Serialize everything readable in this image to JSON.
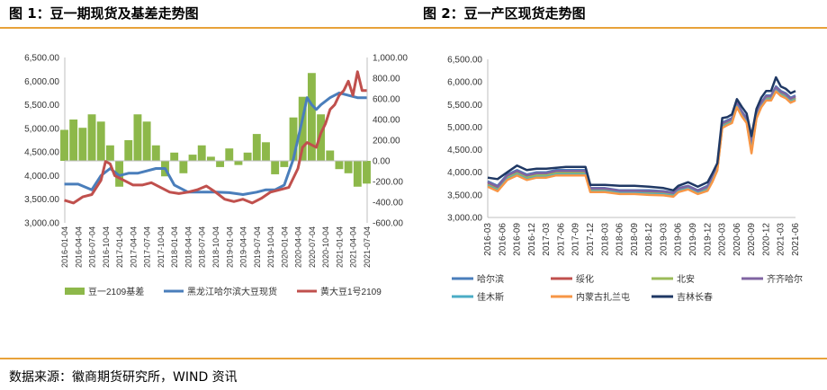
{
  "figure1": {
    "title": "图 1：豆一期现货及基差走势图"
  },
  "figure2": {
    "title": "图 2：豆一产区现货走势图"
  },
  "source": "数据来源：徽商期货研究所，WIND 资讯",
  "chart_data": [
    {
      "type": "bar+line",
      "title": "",
      "xlabel": "",
      "ylabel": "",
      "xlim": [
        "2016-01-04",
        "2021-07-04"
      ],
      "ylim_left": [
        3000,
        6500
      ],
      "ylim_right": [
        -600,
        1000
      ],
      "left_ticks": [
        "3,000.00",
        "3,500.00",
        "4,000.00",
        "4,500.00",
        "5,000.00",
        "5,500.00",
        "6,000.00",
        "6,500.00"
      ],
      "right_ticks": [
        "-600.00",
        "-400.00",
        "-200.00",
        "0.00",
        "200.00",
        "400.00",
        "600.00",
        "800.00",
        "1,000.00"
      ],
      "x_ticks": [
        "2016-01-04",
        "2016-04-04",
        "2016-07-04",
        "2016-10-04",
        "2017-01-04",
        "2017-04-04",
        "2017-07-04",
        "2017-10-04",
        "2018-01-04",
        "2018-04-04",
        "2018-07-04",
        "2018-10-04",
        "2019-01-04",
        "2019-04-04",
        "2019-07-04",
        "2019-10-04",
        "2020-01-04",
        "2020-04-04",
        "2020-07-04",
        "2020-10-04",
        "2021-01-04",
        "2021-04-04",
        "2021-07-04"
      ],
      "legend_placement": "bottom",
      "series": [
        {
          "name": "豆一2109基差",
          "kind": "bar",
          "axis": "right",
          "color": "#8db84a",
          "x": [
            "2016-01",
            "2016-03",
            "2016-05",
            "2016-07",
            "2016-09",
            "2016-11",
            "2017-01",
            "2017-03",
            "2017-05",
            "2017-07",
            "2017-09",
            "2017-11",
            "2018-01",
            "2018-03",
            "2018-05",
            "2018-07",
            "2018-09",
            "2018-11",
            "2019-01",
            "2019-03",
            "2019-05",
            "2019-07",
            "2019-09",
            "2019-11",
            "2020-01",
            "2020-03",
            "2020-05",
            "2020-07",
            "2020-09",
            "2020-11",
            "2021-01",
            "2021-03",
            "2021-05",
            "2021-07"
          ],
          "values": [
            300,
            400,
            320,
            450,
            380,
            150,
            -250,
            200,
            450,
            380,
            150,
            -150,
            80,
            -120,
            60,
            150,
            40,
            -60,
            120,
            -40,
            80,
            260,
            180,
            -130,
            -60,
            420,
            620,
            850,
            450,
            100,
            -80,
            -120,
            -250,
            -220
          ]
        },
        {
          "name": "黑龙江哈尔滨大豆现货",
          "kind": "line",
          "axis": "left",
          "color": "#4a7ebb",
          "x": [
            "2016-01",
            "2016-04",
            "2016-07",
            "2016-09",
            "2016-11",
            "2017-01",
            "2017-03",
            "2017-05",
            "2017-07",
            "2017-09",
            "2017-11",
            "2018-01",
            "2018-04",
            "2018-07",
            "2018-10",
            "2019-01",
            "2019-04",
            "2019-07",
            "2019-09",
            "2019-11",
            "2020-01",
            "2020-03",
            "2020-05",
            "2020-06",
            "2020-07",
            "2020-08",
            "2020-09",
            "2020-11",
            "2021-01",
            "2021-03",
            "2021-05",
            "2021-07"
          ],
          "values": [
            3820,
            3820,
            3700,
            4000,
            4150,
            4000,
            4050,
            4050,
            4100,
            4150,
            4150,
            3800,
            3650,
            3650,
            3650,
            3640,
            3600,
            3650,
            3700,
            3700,
            3800,
            4350,
            5200,
            5650,
            5500,
            5400,
            5500,
            5650,
            5750,
            5700,
            5650,
            5650
          ]
        },
        {
          "name": "黄大豆1号2109",
          "kind": "line",
          "axis": "left",
          "color": "#c0504d",
          "x": [
            "2016-01",
            "2016-03",
            "2016-05",
            "2016-07",
            "2016-09",
            "2016-10",
            "2016-11",
            "2016-12",
            "2017-02",
            "2017-04",
            "2017-06",
            "2017-08",
            "2017-10",
            "2017-12",
            "2018-02",
            "2018-04",
            "2018-06",
            "2018-08",
            "2018-10",
            "2018-12",
            "2019-02",
            "2019-04",
            "2019-06",
            "2019-08",
            "2019-10",
            "2019-12",
            "2020-02",
            "2020-04",
            "2020-05",
            "2020-06",
            "2020-07",
            "2020-08",
            "2020-09",
            "2020-10",
            "2020-11",
            "2020-12",
            "2021-01",
            "2021-02",
            "2021-03",
            "2021-04",
            "2021-05",
            "2021-06",
            "2021-07"
          ],
          "values": [
            3480,
            3420,
            3550,
            3600,
            3900,
            4300,
            4250,
            4000,
            3900,
            3800,
            3800,
            3850,
            3750,
            3650,
            3620,
            3650,
            3700,
            3780,
            3650,
            3500,
            3450,
            3500,
            3420,
            3520,
            3650,
            3700,
            3750,
            4150,
            4600,
            4700,
            4650,
            4600,
            4900,
            5100,
            5400,
            5500,
            5700,
            5800,
            6000,
            5700,
            6200,
            5800,
            5800
          ]
        }
      ]
    },
    {
      "type": "line",
      "title": "",
      "xlabel": "",
      "ylabel": "",
      "xlim": [
        "2016-03",
        "2021-06"
      ],
      "ylim": [
        3000,
        6500
      ],
      "y_ticks": [
        "3,000.00",
        "3,500.00",
        "4,000.00",
        "4,500.00",
        "5,000.00",
        "5,500.00",
        "6,000.00",
        "6,500.00"
      ],
      "x_ticks": [
        "2016-03",
        "2016-06",
        "2016-09",
        "2016-12",
        "2017-03",
        "2017-06",
        "2017-09",
        "2017-12",
        "2018-03",
        "2018-06",
        "2018-09",
        "2018-12",
        "2019-03",
        "2019-06",
        "2019-09",
        "2019-12",
        "2020-03",
        "2020-06",
        "2020-09",
        "2020-12",
        "2021-03",
        "2021-06"
      ],
      "legend_placement": "bottom",
      "x": [
        "2016-03",
        "2016-05",
        "2016-07",
        "2016-09",
        "2016-11",
        "2017-01",
        "2017-03",
        "2017-05",
        "2017-07",
        "2017-09",
        "2017-11",
        "2017-12",
        "2018-03",
        "2018-06",
        "2018-09",
        "2018-12",
        "2019-03",
        "2019-05",
        "2019-06",
        "2019-08",
        "2019-10",
        "2019-12",
        "2020-01",
        "2020-02",
        "2020-03",
        "2020-04",
        "2020-05",
        "2020-06",
        "2020-07",
        "2020-08",
        "2020-09",
        "2020-10",
        "2020-11",
        "2020-12",
        "2021-01",
        "2021-02",
        "2021-03",
        "2021-04",
        "2021-05",
        "2021-06"
      ],
      "series": [
        {
          "name": "哈尔滨",
          "color": "#4a7ebb",
          "values": [
            3800,
            3700,
            3950,
            4050,
            3950,
            4000,
            4000,
            4050,
            4050,
            4050,
            4050,
            3650,
            3650,
            3600,
            3600,
            3600,
            3580,
            3550,
            3650,
            3700,
            3600,
            3700,
            3900,
            4150,
            5100,
            5150,
            5200,
            5550,
            5350,
            5200,
            4700,
            5300,
            5550,
            5700,
            5700,
            5900,
            5800,
            5750,
            5650,
            5700
          ]
        },
        {
          "name": "绥化",
          "color": "#c0504d",
          "values": [
            3750,
            3650,
            3900,
            4000,
            3900,
            3950,
            3950,
            4000,
            4000,
            4000,
            4000,
            3620,
            3620,
            3580,
            3580,
            3560,
            3550,
            3520,
            3620,
            3680,
            3580,
            3650,
            3850,
            4100,
            5050,
            5100,
            5150,
            5500,
            5300,
            5150,
            4500,
            5250,
            5500,
            5650,
            5650,
            5850,
            5750,
            5700,
            5600,
            5650
          ]
        },
        {
          "name": "北安",
          "color": "#9bbb59",
          "values": [
            3720,
            3620,
            3880,
            3980,
            3880,
            3930,
            3930,
            3980,
            3980,
            3980,
            3980,
            3600,
            3600,
            3560,
            3560,
            3540,
            3530,
            3500,
            3600,
            3660,
            3560,
            3630,
            3830,
            4080,
            5030,
            5080,
            5130,
            5480,
            5280,
            5130,
            4480,
            5230,
            5480,
            5630,
            5630,
            5830,
            5730,
            5680,
            5580,
            5630
          ]
        },
        {
          "name": "齐齐哈尔",
          "color": "#8064a2",
          "values": [
            3780,
            3680,
            3930,
            4030,
            3930,
            3980,
            3980,
            4030,
            4030,
            4030,
            4030,
            3640,
            3640,
            3590,
            3590,
            3580,
            3570,
            3540,
            3640,
            3690,
            3590,
            3680,
            3880,
            4130,
            5080,
            5130,
            5180,
            5530,
            5330,
            5180,
            4600,
            5280,
            5530,
            5680,
            5680,
            5880,
            5780,
            5730,
            5630,
            5680
          ]
        },
        {
          "name": "佳木斯",
          "color": "#4bacc6",
          "values": [
            3700,
            3600,
            3850,
            3950,
            3850,
            3900,
            3900,
            3950,
            3950,
            3950,
            3950,
            3580,
            3580,
            3540,
            3540,
            3520,
            3510,
            3480,
            3580,
            3640,
            3540,
            3610,
            3810,
            4060,
            5000,
            5060,
            5110,
            5460,
            5260,
            5110,
            4460,
            5210,
            5460,
            5610,
            5610,
            5810,
            5710,
            5660,
            5560,
            5610
          ]
        },
        {
          "name": "内蒙古扎兰屯",
          "color": "#f79646",
          "values": [
            3680,
            3580,
            3830,
            3930,
            3830,
            3880,
            3880,
            3930,
            3930,
            3930,
            3930,
            3560,
            3560,
            3520,
            3520,
            3500,
            3490,
            3460,
            3560,
            3620,
            3520,
            3590,
            3790,
            4040,
            4980,
            5040,
            5090,
            5440,
            5240,
            5090,
            4420,
            5190,
            5440,
            5590,
            5590,
            5790,
            5690,
            5640,
            5540,
            5590
          ]
        },
        {
          "name": "吉林长春",
          "color": "#1f3864",
          "values": [
            3880,
            3850,
            4000,
            4150,
            4050,
            4080,
            4080,
            4100,
            4120,
            4120,
            4120,
            3720,
            3720,
            3700,
            3700,
            3680,
            3650,
            3600,
            3700,
            3780,
            3680,
            3780,
            3980,
            4200,
            5200,
            5220,
            5280,
            5620,
            5450,
            5300,
            4800,
            5400,
            5650,
            5800,
            5800,
            6100,
            5900,
            5850,
            5750,
            5800
          ]
        }
      ]
    }
  ]
}
